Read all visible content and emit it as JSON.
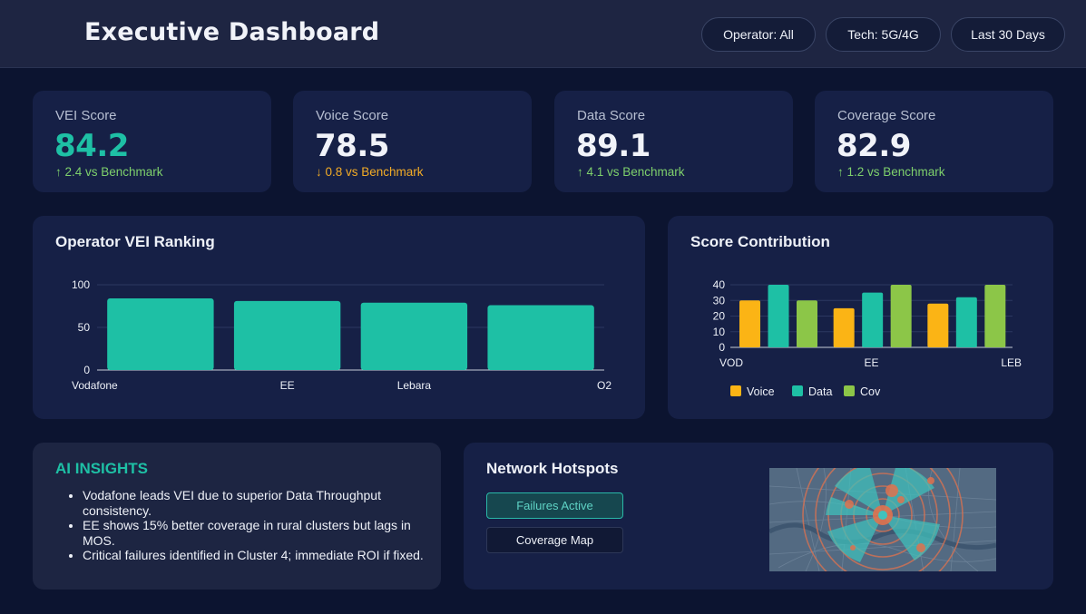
{
  "header": {
    "title": "Executive Dashboard",
    "filters": [
      "Operator: All",
      "Tech: 5G/4G",
      "Last 30 Days"
    ]
  },
  "kpis": [
    {
      "label": "VEI Score",
      "value": "84.2",
      "delta": "↑ 2.4 vs Benchmark",
      "value_color": "#1ec0a5",
      "delta_color": "#7ed06c"
    },
    {
      "label": "Voice Score",
      "value": "78.5",
      "delta": "↓ 0.8 vs Benchmark",
      "value_color": "#f1f3f9",
      "delta_color": "#f2ab26"
    },
    {
      "label": "Data Score",
      "value": "89.1",
      "delta": "↑ 4.1 vs Benchmark",
      "value_color": "#f1f3f9",
      "delta_color": "#7ed06c"
    },
    {
      "label": "Coverage Score",
      "value": "82.9",
      "delta": "↑ 1.2 vs Benchmark",
      "value_color": "#f1f3f9",
      "delta_color": "#7ed06c"
    }
  ],
  "ranking": {
    "title": "Operator VEI Ranking"
  },
  "contribution": {
    "title": "Score Contribution"
  },
  "insights": {
    "title": "AI INSIGHTS",
    "items": [
      "Vodafone leads VEI due to superior Data Throughput consistency.",
      "EE shows 15% better coverage in rural clusters but lags in MOS.",
      "Critical failures identified in Cluster 4; immediate ROI if fixed."
    ]
  },
  "hotspots": {
    "title": "Network Hotspots",
    "buttons": {
      "failures": "Failures Active",
      "coverage": "Coverage Map"
    }
  },
  "chart_data": [
    {
      "type": "bar",
      "title": "Operator VEI Ranking",
      "categories": [
        "Vodafone",
        "EE",
        "Lebara",
        "O2"
      ],
      "values": [
        84,
        81,
        79,
        76
      ],
      "ylim": [
        0,
        100
      ],
      "yticks": [
        0,
        50,
        100
      ],
      "grid": true,
      "colors": [
        "#1ec0a5"
      ]
    },
    {
      "type": "bar",
      "title": "Score Contribution",
      "categories": [
        "VOD",
        "EE",
        "LEB"
      ],
      "series": [
        {
          "name": "Voice",
          "values": [
            30,
            25,
            28
          ],
          "color": "#fbb415"
        },
        {
          "name": "Data",
          "values": [
            40,
            35,
            32
          ],
          "color": "#1ec0a5"
        },
        {
          "name": "Cov",
          "values": [
            30,
            40,
            40
          ],
          "color": "#8cc648"
        }
      ],
      "ylim": [
        0,
        40
      ],
      "yticks": [
        0,
        10,
        20,
        30,
        40
      ],
      "legend": "bottom",
      "grid": true
    }
  ]
}
